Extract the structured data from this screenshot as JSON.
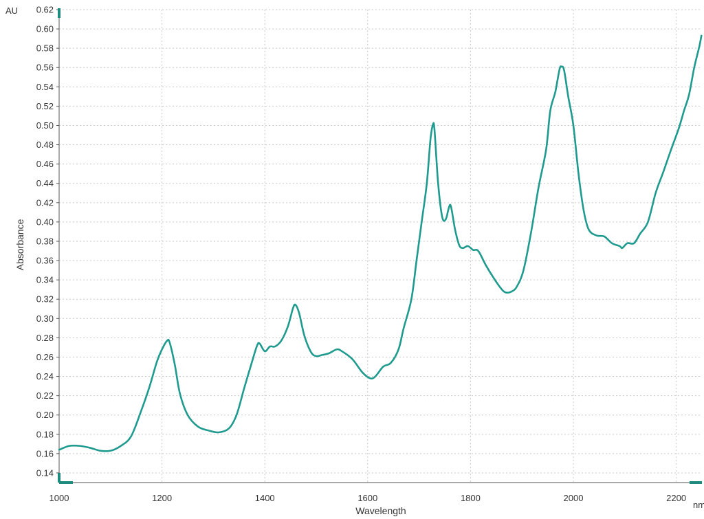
{
  "chart_data": {
    "type": "line",
    "title": "",
    "xlabel": "Wavelength",
    "ylabel": "Absorbance",
    "x_unit": "nm",
    "y_unit": "AU",
    "xlim": [
      1000,
      2250
    ],
    "ylim": [
      0.13,
      0.62
    ],
    "x_ticks": [
      1000,
      1200,
      1400,
      1600,
      1800,
      2000,
      2200
    ],
    "y_ticks": [
      0.14,
      0.16,
      0.18,
      0.2,
      0.22,
      0.24,
      0.26,
      0.28,
      0.3,
      0.32,
      0.34,
      0.36,
      0.38,
      0.4,
      0.42,
      0.44,
      0.46,
      0.48,
      0.5,
      0.52,
      0.54,
      0.56,
      0.58,
      0.6,
      0.62
    ],
    "grid": true,
    "colors": {
      "series": "#1f9a8e",
      "ylabel": "#1f9a8e",
      "axis_marker": "#1f8a7e"
    },
    "series": [
      {
        "points": [
          [
            1000,
            0.164
          ],
          [
            1020,
            0.168
          ],
          [
            1040,
            0.168
          ],
          [
            1060,
            0.166
          ],
          [
            1080,
            0.163
          ],
          [
            1100,
            0.163
          ],
          [
            1120,
            0.168
          ],
          [
            1140,
            0.178
          ],
          [
            1160,
            0.205
          ],
          [
            1175,
            0.228
          ],
          [
            1190,
            0.255
          ],
          [
            1200,
            0.268
          ],
          [
            1210,
            0.277
          ],
          [
            1215,
            0.275
          ],
          [
            1225,
            0.252
          ],
          [
            1235,
            0.222
          ],
          [
            1250,
            0.2
          ],
          [
            1270,
            0.188
          ],
          [
            1290,
            0.184
          ],
          [
            1310,
            0.182
          ],
          [
            1330,
            0.186
          ],
          [
            1345,
            0.2
          ],
          [
            1360,
            0.228
          ],
          [
            1375,
            0.255
          ],
          [
            1385,
            0.272
          ],
          [
            1390,
            0.274
          ],
          [
            1400,
            0.266
          ],
          [
            1410,
            0.271
          ],
          [
            1420,
            0.271
          ],
          [
            1432,
            0.277
          ],
          [
            1445,
            0.292
          ],
          [
            1455,
            0.311
          ],
          [
            1460,
            0.314
          ],
          [
            1467,
            0.305
          ],
          [
            1477,
            0.282
          ],
          [
            1490,
            0.265
          ],
          [
            1500,
            0.261
          ],
          [
            1510,
            0.262
          ],
          [
            1525,
            0.264
          ],
          [
            1540,
            0.268
          ],
          [
            1550,
            0.266
          ],
          [
            1570,
            0.258
          ],
          [
            1590,
            0.244
          ],
          [
            1605,
            0.238
          ],
          [
            1615,
            0.24
          ],
          [
            1630,
            0.25
          ],
          [
            1645,
            0.254
          ],
          [
            1660,
            0.268
          ],
          [
            1670,
            0.29
          ],
          [
            1685,
            0.32
          ],
          [
            1695,
            0.36
          ],
          [
            1705,
            0.4
          ],
          [
            1715,
            0.44
          ],
          [
            1722,
            0.485
          ],
          [
            1727,
            0.501
          ],
          [
            1730,
            0.495
          ],
          [
            1737,
            0.44
          ],
          [
            1745,
            0.405
          ],
          [
            1752,
            0.403
          ],
          [
            1758,
            0.415
          ],
          [
            1762,
            0.416
          ],
          [
            1770,
            0.392
          ],
          [
            1778,
            0.376
          ],
          [
            1785,
            0.373
          ],
          [
            1795,
            0.375
          ],
          [
            1805,
            0.371
          ],
          [
            1815,
            0.37
          ],
          [
            1830,
            0.355
          ],
          [
            1845,
            0.342
          ],
          [
            1858,
            0.332
          ],
          [
            1868,
            0.327
          ],
          [
            1880,
            0.328
          ],
          [
            1890,
            0.333
          ],
          [
            1903,
            0.35
          ],
          [
            1918,
            0.39
          ],
          [
            1932,
            0.435
          ],
          [
            1947,
            0.475
          ],
          [
            1955,
            0.515
          ],
          [
            1965,
            0.535
          ],
          [
            1973,
            0.558
          ],
          [
            1977,
            0.561
          ],
          [
            1982,
            0.557
          ],
          [
            1990,
            0.53
          ],
          [
            2000,
            0.5
          ],
          [
            2010,
            0.45
          ],
          [
            2020,
            0.412
          ],
          [
            2030,
            0.392
          ],
          [
            2045,
            0.386
          ],
          [
            2060,
            0.385
          ],
          [
            2075,
            0.378
          ],
          [
            2090,
            0.375
          ],
          [
            2095,
            0.373
          ],
          [
            2105,
            0.378
          ],
          [
            2118,
            0.378
          ],
          [
            2130,
            0.388
          ],
          [
            2145,
            0.4
          ],
          [
            2160,
            0.43
          ],
          [
            2175,
            0.452
          ],
          [
            2190,
            0.475
          ],
          [
            2205,
            0.497
          ],
          [
            2215,
            0.515
          ],
          [
            2225,
            0.532
          ],
          [
            2235,
            0.56
          ],
          [
            2245,
            0.582
          ],
          [
            2249,
            0.593
          ]
        ]
      }
    ]
  }
}
